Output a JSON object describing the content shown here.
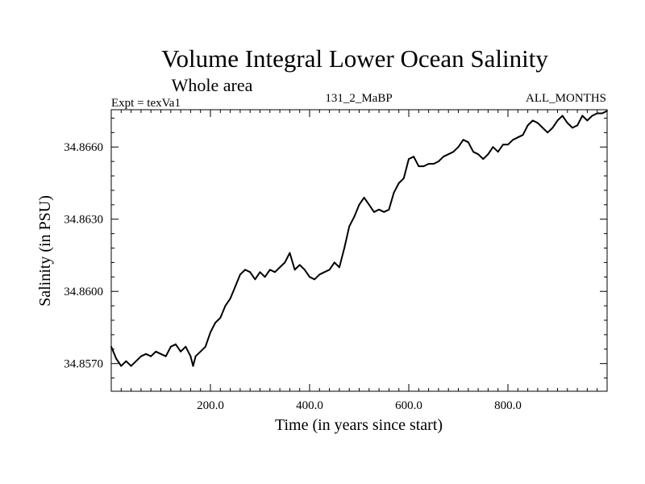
{
  "chart_data": {
    "type": "line",
    "title": "Volume Integral Lower Ocean Salinity",
    "subtitle": "Whole area",
    "left_label": "Expt = texVa1",
    "center_label": "131_2_MaBP",
    "right_label": "ALL_MONTHS",
    "xlabel": "Time (in years since start)",
    "ylabel": "Salinity (in PSU)",
    "xlim": [
      0,
      1000
    ],
    "ylim": [
      34.85585,
      34.86755
    ],
    "x_ticks": [
      200,
      400,
      600,
      800
    ],
    "x_tick_labels": [
      "200.0",
      "400.0",
      "600.0",
      "800.0"
    ],
    "y_ticks": [
      34.857,
      34.86,
      34.863,
      34.866
    ],
    "y_tick_labels": [
      "34.8570",
      "34.8600",
      "34.8630",
      "34.8660"
    ],
    "grid": false,
    "series": [
      {
        "name": "salinity",
        "color": "#000000",
        "x": [
          0,
          10,
          20,
          30,
          40,
          50,
          60,
          70,
          80,
          90,
          100,
          110,
          120,
          130,
          140,
          150,
          160,
          165,
          170,
          180,
          190,
          200,
          210,
          220,
          230,
          240,
          250,
          260,
          270,
          280,
          290,
          300,
          310,
          320,
          330,
          340,
          350,
          360,
          370,
          380,
          390,
          400,
          410,
          420,
          430,
          440,
          450,
          460,
          470,
          480,
          490,
          500,
          510,
          520,
          530,
          540,
          550,
          560,
          570,
          580,
          590,
          600,
          610,
          620,
          630,
          640,
          650,
          660,
          670,
          680,
          690,
          700,
          710,
          720,
          730,
          740,
          750,
          760,
          770,
          780,
          790,
          800,
          810,
          820,
          830,
          840,
          850,
          860,
          870,
          880,
          890,
          900,
          910,
          920,
          930,
          940,
          950,
          960,
          970,
          980,
          990,
          1000
        ],
        "y": [
          34.8577,
          34.8572,
          34.8569,
          34.8571,
          34.8569,
          34.8571,
          34.8573,
          34.8574,
          34.8573,
          34.8575,
          34.8574,
          34.8573,
          34.8577,
          34.8578,
          34.8575,
          34.8577,
          34.8573,
          34.8569,
          34.8573,
          34.8575,
          34.8577,
          34.8583,
          34.8587,
          34.8589,
          34.8594,
          34.8597,
          34.8602,
          34.8607,
          34.8609,
          34.8608,
          34.8605,
          34.8608,
          34.8606,
          34.8609,
          34.8608,
          34.861,
          34.8612,
          34.8616,
          34.8609,
          34.8611,
          34.8609,
          34.8606,
          34.8605,
          34.8607,
          34.8608,
          34.8609,
          34.8612,
          34.861,
          34.8618,
          34.8627,
          34.8631,
          34.8636,
          34.8639,
          34.8636,
          34.8633,
          34.8634,
          34.8633,
          34.8634,
          34.8641,
          34.8645,
          34.8647,
          34.8655,
          34.8656,
          34.8652,
          34.8652,
          34.8653,
          34.8653,
          34.8654,
          34.8656,
          34.8657,
          34.8658,
          34.866,
          34.8663,
          34.8662,
          34.8658,
          34.8657,
          34.8655,
          34.8657,
          34.866,
          34.8658,
          34.8661,
          34.8661,
          34.8663,
          34.8664,
          34.8665,
          34.8669,
          34.8671,
          34.867,
          34.8668,
          34.8666,
          34.8668,
          34.8671,
          34.8673,
          34.867,
          34.8668,
          34.8669,
          34.8673,
          34.8671,
          34.8673,
          34.8674,
          34.8674,
          34.8675
        ]
      }
    ]
  }
}
